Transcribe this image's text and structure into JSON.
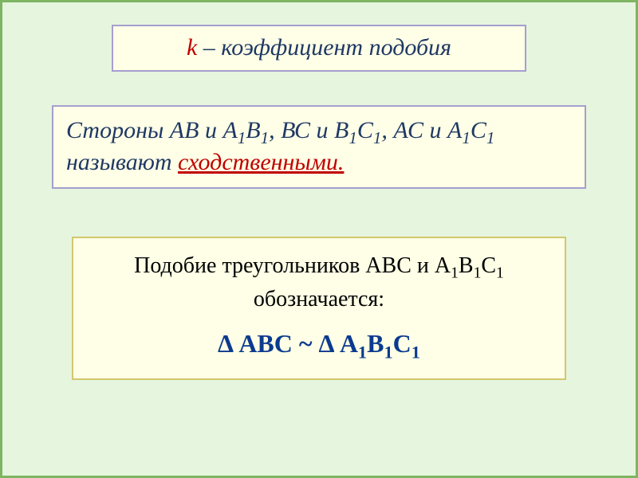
{
  "slide": {
    "background_color": "#e6f5de",
    "border_color": "#7eb562"
  },
  "box1": {
    "background_color": "#feffe6",
    "border_color": "#a59fcf",
    "k_text": "k",
    "k_color": "#c00000",
    "rest_text": " – коэффициент подобия",
    "rest_color": "#1f3864"
  },
  "box2": {
    "background_color": "#feffe6",
    "border_color": "#a59fcf",
    "text_color": "#1f3864",
    "prefix": "Стороны АВ и А",
    "sub1": "1",
    "mid1": "В",
    "sub2": "1",
    "mid2": ", ВС и В",
    "sub3": "1",
    "mid3": "С",
    "sub4": "1",
    "mid4": ", АС и А",
    "sub5": "1",
    "mid5": "С",
    "sub6": "1",
    "mid6": " называют ",
    "underlined_text": "сходственными.",
    "underlined_color": "#c00000"
  },
  "box3": {
    "background_color": "#feffe6",
    "border_color": "#d0c86e",
    "text_color": "#000000",
    "line1_prefix": "Подобие треугольников АВС и А",
    "line1_sub1": "1",
    "line1_mid1": "В",
    "line1_sub2": "1",
    "line1_mid2": "С",
    "line1_sub3": "1",
    "line1_suffix": " обозначается:",
    "formula_color": "#0b3a8f",
    "formula_prefix": "Δ АВС ~ Δ А",
    "formula_sub1": "1",
    "formula_mid1": "В",
    "formula_sub2": "1",
    "formula_mid2": "С",
    "formula_sub3": "1"
  }
}
